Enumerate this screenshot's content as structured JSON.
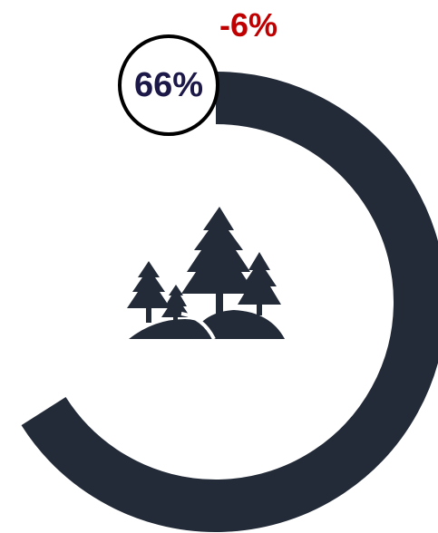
{
  "chart_data": {
    "type": "gauge",
    "value": 66,
    "value_max": 100,
    "value_label": "66%",
    "change_label": "-6%",
    "icon": "forest-icon"
  },
  "colors": {
    "arc": "#232b38",
    "change": "#c00000",
    "value_text": "#1c1848",
    "badge_border": "#000000",
    "icon": "#232b38"
  }
}
